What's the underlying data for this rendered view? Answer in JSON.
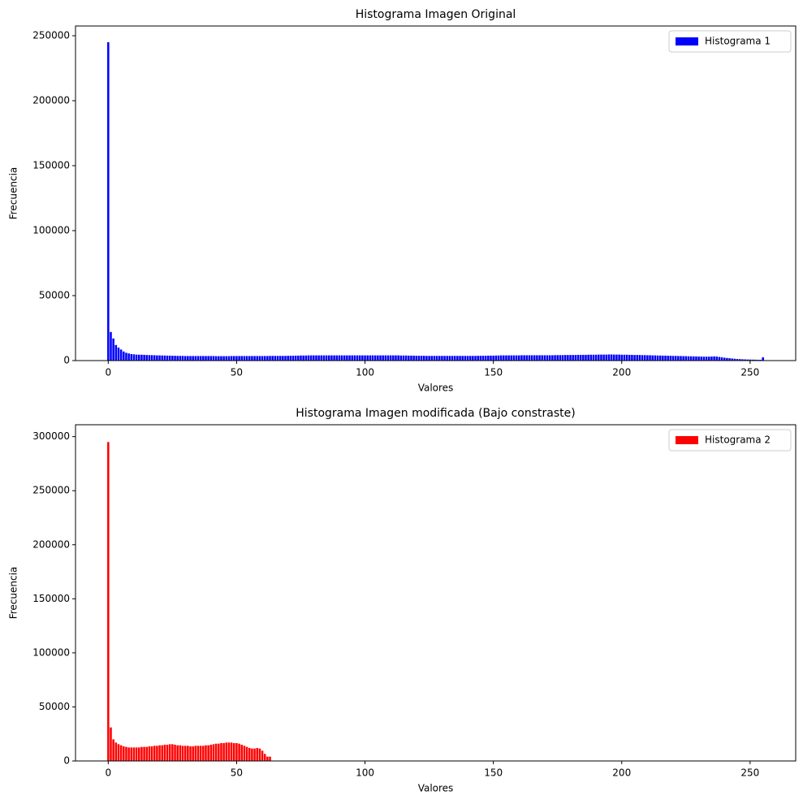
{
  "chart_data": [
    {
      "type": "bar",
      "title": "Histograma Imagen Original",
      "x_label": "Valores",
      "y_label": "Frecuencia",
      "series": [
        {
          "name": "Histograma 1",
          "color": "#0000ff",
          "x": [
            0,
            1,
            2,
            3,
            4,
            5,
            6,
            7,
            8,
            9,
            10,
            11,
            12,
            13,
            14,
            15,
            16,
            17,
            18,
            19,
            20,
            21,
            22,
            23,
            24,
            25,
            26,
            27,
            28,
            29,
            30,
            31,
            32,
            33,
            34,
            35,
            36,
            37,
            38,
            39,
            40,
            41,
            42,
            43,
            44,
            45,
            46,
            47,
            48,
            49,
            50,
            51,
            52,
            53,
            54,
            55,
            56,
            57,
            58,
            59,
            60,
            61,
            62,
            63,
            64,
            65,
            66,
            67,
            68,
            69,
            70,
            71,
            72,
            73,
            74,
            75,
            76,
            77,
            78,
            79,
            80,
            81,
            82,
            83,
            84,
            85,
            86,
            87,
            88,
            89,
            90,
            91,
            92,
            93,
            94,
            95,
            96,
            97,
            98,
            99,
            100,
            101,
            102,
            103,
            104,
            105,
            106,
            107,
            108,
            109,
            110,
            111,
            112,
            113,
            114,
            115,
            116,
            117,
            118,
            119,
            120,
            121,
            122,
            123,
            124,
            125,
            126,
            127,
            128,
            129,
            130,
            131,
            132,
            133,
            134,
            135,
            136,
            137,
            138,
            139,
            140,
            141,
            142,
            143,
            144,
            145,
            146,
            147,
            148,
            149,
            150,
            151,
            152,
            153,
            154,
            155,
            156,
            157,
            158,
            159,
            160,
            161,
            162,
            163,
            164,
            165,
            166,
            167,
            168,
            169,
            170,
            171,
            172,
            173,
            174,
            175,
            176,
            177,
            178,
            179,
            180,
            181,
            182,
            183,
            184,
            185,
            186,
            187,
            188,
            189,
            190,
            191,
            192,
            193,
            194,
            195,
            196,
            197,
            198,
            199,
            200,
            201,
            202,
            203,
            204,
            205,
            206,
            207,
            208,
            209,
            210,
            211,
            212,
            213,
            214,
            215,
            216,
            217,
            218,
            219,
            220,
            221,
            222,
            223,
            224,
            225,
            226,
            227,
            228,
            229,
            230,
            231,
            232,
            233,
            234,
            235,
            236,
            237,
            238,
            239,
            240,
            241,
            242,
            243,
            244,
            245,
            246,
            247,
            248,
            249,
            250,
            251,
            252,
            253,
            254,
            255
          ],
          "values": [
            245000,
            22000,
            17000,
            12000,
            10000,
            8500,
            7000,
            6000,
            5500,
            5000,
            4800,
            4600,
            4500,
            4500,
            4400,
            4300,
            4200,
            4200,
            4100,
            4000,
            4000,
            3900,
            3900,
            3800,
            3800,
            3700,
            3700,
            3600,
            3600,
            3600,
            3500,
            3500,
            3500,
            3500,
            3500,
            3500,
            3500,
            3500,
            3500,
            3500,
            3500,
            3500,
            3400,
            3400,
            3400,
            3400,
            3400,
            3400,
            3500,
            3500,
            3500,
            3500,
            3500,
            3500,
            3500,
            3500,
            3500,
            3500,
            3500,
            3500,
            3500,
            3500,
            3500,
            3600,
            3600,
            3600,
            3600,
            3600,
            3600,
            3600,
            3700,
            3700,
            3700,
            3800,
            3800,
            3900,
            3900,
            3900,
            4000,
            4000,
            4000,
            4000,
            4000,
            4000,
            4000,
            4000,
            4000,
            4000,
            4000,
            4000,
            4000,
            4000,
            4000,
            4000,
            4000,
            4000,
            4000,
            4000,
            4000,
            4000,
            4000,
            4000,
            4000,
            4000,
            4000,
            4000,
            4000,
            4000,
            4000,
            4000,
            4000,
            4000,
            4000,
            4000,
            3900,
            3900,
            3900,
            3800,
            3800,
            3800,
            3700,
            3700,
            3700,
            3700,
            3600,
            3600,
            3600,
            3600,
            3600,
            3600,
            3600,
            3600,
            3600,
            3600,
            3600,
            3600,
            3600,
            3600,
            3600,
            3600,
            3600,
            3600,
            3600,
            3600,
            3700,
            3700,
            3700,
            3700,
            3800,
            3800,
            3800,
            3900,
            3900,
            4000,
            4000,
            4000,
            4000,
            4000,
            4000,
            4000,
            4000,
            4100,
            4100,
            4100,
            4100,
            4100,
            4100,
            4100,
            4100,
            4100,
            4100,
            4100,
            4100,
            4100,
            4200,
            4200,
            4200,
            4200,
            4300,
            4300,
            4300,
            4300,
            4300,
            4400,
            4400,
            4400,
            4400,
            4500,
            4500,
            4500,
            4500,
            4600,
            4600,
            4600,
            4600,
            4700,
            4700,
            4600,
            4600,
            4600,
            4500,
            4500,
            4500,
            4400,
            4400,
            4300,
            4300,
            4300,
            4200,
            4200,
            4100,
            4100,
            4000,
            4000,
            3900,
            3900,
            3800,
            3800,
            3700,
            3700,
            3600,
            3600,
            3500,
            3500,
            3400,
            3400,
            3300,
            3300,
            3200,
            3200,
            3100,
            3100,
            3000,
            3000,
            3000,
            3100,
            3200,
            3100,
            2800,
            2500,
            2200,
            2000,
            1800,
            1600,
            1400,
            1200,
            1100,
            1000,
            900,
            800,
            800,
            700,
            700,
            600,
            600,
            2500
          ]
        }
      ],
      "xlim": [
        -12.75,
        267.75
      ],
      "xticks": [
        0,
        50,
        100,
        150,
        200,
        250
      ],
      "ylim": [
        0,
        257500
      ],
      "yticks": [
        0,
        50000,
        100000,
        150000,
        200000,
        250000
      ],
      "legend": "upper right"
    },
    {
      "type": "bar",
      "title": "Histograma Imagen modificada (Bajo constraste)",
      "x_label": "Valores",
      "y_label": "Frecuencia",
      "series": [
        {
          "name": "Histograma 2",
          "color": "#ff0000",
          "x": [
            0,
            1,
            2,
            3,
            4,
            5,
            6,
            7,
            8,
            9,
            10,
            11,
            12,
            13,
            14,
            15,
            16,
            17,
            18,
            19,
            20,
            21,
            22,
            23,
            24,
            25,
            26,
            27,
            28,
            29,
            30,
            31,
            32,
            33,
            34,
            35,
            36,
            37,
            38,
            39,
            40,
            41,
            42,
            43,
            44,
            45,
            46,
            47,
            48,
            49,
            50,
            51,
            52,
            53,
            54,
            55,
            56,
            57,
            58,
            59,
            60,
            61,
            62,
            63,
            64,
            65,
            66,
            67,
            68,
            69,
            70,
            71,
            72,
            73,
            74,
            75,
            76,
            77,
            78,
            79,
            80,
            81,
            82,
            83,
            84,
            85,
            86,
            87,
            88,
            89,
            90,
            91,
            92,
            93,
            94,
            95,
            96,
            97,
            98,
            99,
            100,
            101,
            102,
            103,
            104,
            105,
            106,
            107,
            108,
            109,
            110,
            111,
            112,
            113,
            114,
            115,
            116,
            117,
            118,
            119,
            120,
            121,
            122,
            123,
            124,
            125,
            126,
            127,
            128,
            129,
            130,
            131,
            132,
            133,
            134,
            135,
            136,
            137,
            138,
            139,
            140,
            141,
            142,
            143,
            144,
            145,
            146,
            147,
            148,
            149,
            150,
            151,
            152,
            153,
            154,
            155,
            156,
            157,
            158,
            159,
            160,
            161,
            162,
            163,
            164,
            165,
            166,
            167,
            168,
            169,
            170,
            171,
            172,
            173,
            174,
            175,
            176,
            177,
            178,
            179,
            180,
            181,
            182,
            183,
            184,
            185,
            186,
            187,
            188,
            189,
            190,
            191,
            192,
            193,
            194,
            195,
            196,
            197,
            198,
            199,
            200,
            201,
            202,
            203,
            204,
            205,
            206,
            207,
            208,
            209,
            210,
            211,
            212,
            213,
            214,
            215,
            216,
            217,
            218,
            219,
            220,
            221,
            222,
            223,
            224,
            225,
            226,
            227,
            228,
            229,
            230,
            231,
            232,
            233,
            234,
            235,
            236,
            237,
            238,
            239,
            240,
            241,
            242,
            243,
            244,
            245,
            246,
            247,
            248,
            249,
            250,
            251,
            252,
            253,
            254,
            255
          ],
          "values": [
            295000,
            31000,
            20000,
            17000,
            15500,
            14500,
            13500,
            13000,
            12500,
            12500,
            12500,
            12500,
            12500,
            13000,
            13000,
            13000,
            13500,
            13500,
            14000,
            14000,
            14500,
            14500,
            15000,
            15000,
            15500,
            15500,
            15000,
            14500,
            14500,
            14000,
            14000,
            14000,
            13500,
            13500,
            14000,
            14000,
            14000,
            14000,
            14500,
            14500,
            15000,
            15500,
            16000,
            16000,
            16500,
            16500,
            17000,
            17000,
            17000,
            16500,
            16500,
            16000,
            15000,
            14000,
            13000,
            12000,
            11500,
            11500,
            12000,
            11500,
            9500,
            6500,
            4000,
            4000,
            0,
            0,
            0,
            0,
            0,
            0,
            0,
            0,
            0,
            0,
            0,
            0,
            0,
            0,
            0,
            0,
            0,
            0,
            0,
            0,
            0,
            0,
            0,
            0,
            0,
            0,
            0,
            0,
            0,
            0,
            0,
            0,
            0,
            0,
            0,
            0,
            0,
            0,
            0,
            0,
            0,
            0,
            0,
            0,
            0,
            0,
            0,
            0,
            0,
            0,
            0,
            0,
            0,
            0,
            0,
            0,
            0,
            0,
            0,
            0,
            0,
            0,
            0,
            0,
            0,
            0,
            0,
            0,
            0,
            0,
            0,
            0,
            0,
            0,
            0,
            0,
            0,
            0,
            0,
            0,
            0,
            0,
            0,
            0,
            0,
            0,
            0,
            0,
            0,
            0,
            0,
            0,
            0,
            0,
            0,
            0,
            0,
            0,
            0,
            0,
            0,
            0,
            0,
            0,
            0,
            0,
            0,
            0,
            0,
            0,
            0,
            0,
            0,
            0,
            0,
            0,
            0,
            0,
            0,
            0,
            0,
            0,
            0,
            0,
            0,
            0,
            0,
            0,
            0,
            0,
            0,
            0,
            0,
            0,
            0,
            0,
            0,
            0,
            0,
            0,
            0,
            0,
            0,
            0,
            0,
            0,
            0,
            0,
            0,
            0,
            0,
            0,
            0,
            0,
            0,
            0,
            0,
            0,
            0,
            0,
            0,
            0,
            0,
            0,
            0,
            0,
            0,
            0,
            0,
            0,
            0,
            0,
            0,
            0,
            0,
            0,
            0,
            0,
            0,
            0,
            0,
            0,
            0,
            0,
            0,
            0,
            0,
            0,
            0,
            0,
            0,
            0
          ]
        }
      ],
      "xlim": [
        -12.75,
        267.75
      ],
      "xticks": [
        0,
        50,
        100,
        150,
        200,
        250
      ],
      "ylim": [
        0,
        311000
      ],
      "yticks": [
        0,
        50000,
        100000,
        150000,
        200000,
        250000,
        300000
      ],
      "legend": "upper right"
    }
  ]
}
